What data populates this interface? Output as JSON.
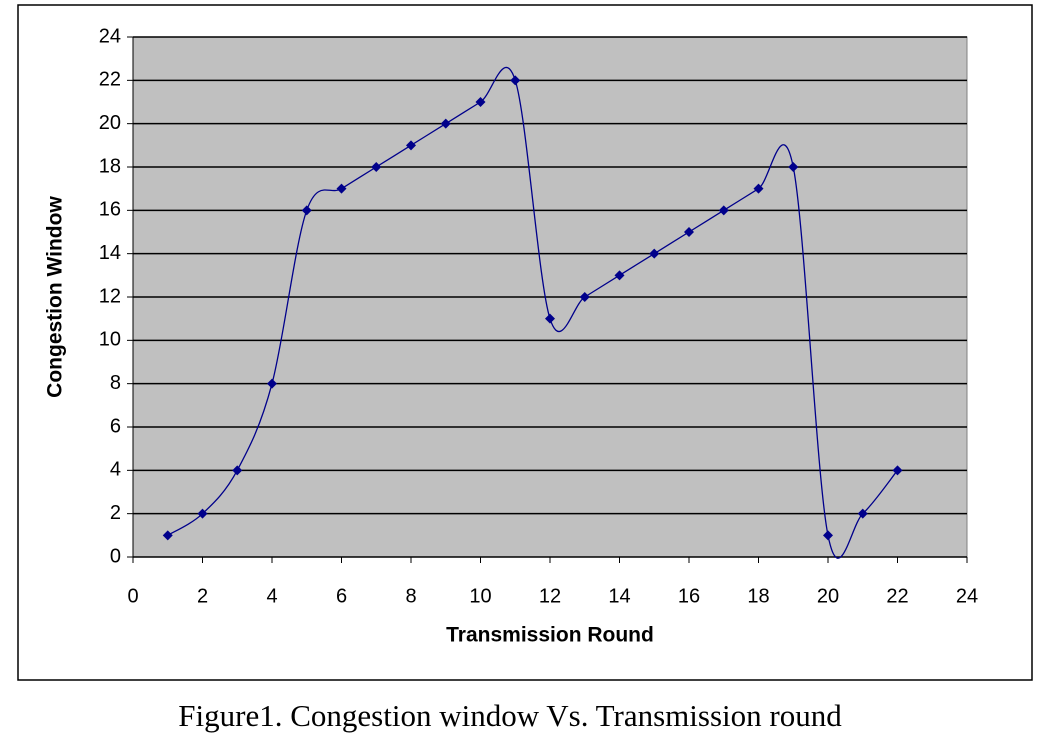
{
  "chart_data": {
    "type": "line",
    "xlabel": "Transmission Round",
    "ylabel": "Congestion Window",
    "caption": "Figure1. Congestion window Vs. Transmission round",
    "x": [
      1,
      2,
      3,
      4,
      5,
      6,
      7,
      8,
      9,
      10,
      11,
      12,
      13,
      14,
      15,
      16,
      17,
      18,
      19,
      20,
      21,
      22
    ],
    "values": [
      1,
      2,
      4,
      8,
      16,
      17,
      18,
      19,
      20,
      21,
      22,
      11,
      12,
      13,
      14,
      15,
      16,
      17,
      18,
      1,
      2,
      4
    ],
    "color": "#00008b",
    "xlim": [
      0,
      24
    ],
    "xticks": [
      0,
      2,
      4,
      6,
      8,
      10,
      12,
      14,
      16,
      18,
      20,
      22,
      24
    ],
    "ylim": [
      0,
      24
    ],
    "yticks": [
      0,
      2,
      4,
      6,
      8,
      10,
      12,
      14,
      16,
      18,
      20,
      22,
      24
    ],
    "grid": true,
    "smooth": true
  }
}
